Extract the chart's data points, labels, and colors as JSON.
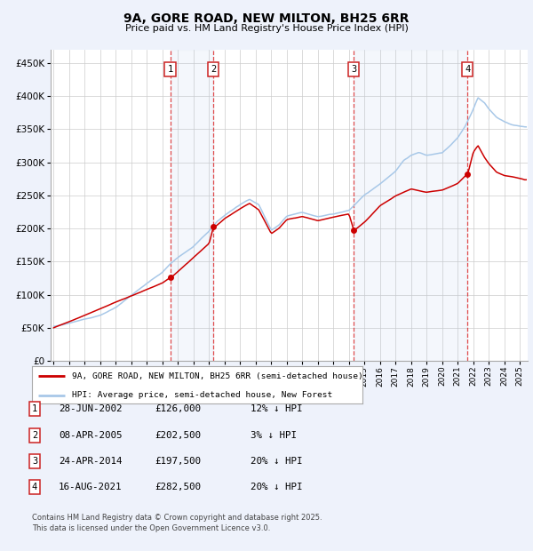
{
  "title": "9A, GORE ROAD, NEW MILTON, BH25 6RR",
  "subtitle": "Price paid vs. HM Land Registry's House Price Index (HPI)",
  "bg_color": "#eef2fb",
  "plot_bg_color": "#ffffff",
  "grid_color": "#cccccc",
  "hpi_color": "#a8c8e8",
  "price_color": "#cc0000",
  "purchases": [
    {
      "date_num": 2002.49,
      "price": 126000,
      "label": "1"
    },
    {
      "date_num": 2005.27,
      "price": 202500,
      "label": "2"
    },
    {
      "date_num": 2014.31,
      "price": 197500,
      "label": "3"
    },
    {
      "date_num": 2021.62,
      "price": 282500,
      "label": "4"
    }
  ],
  "legend_price_label": "9A, GORE ROAD, NEW MILTON, BH25 6RR (semi-detached house)",
  "legend_hpi_label": "HPI: Average price, semi-detached house, New Forest",
  "table_rows": [
    {
      "num": "1",
      "date": "28-JUN-2002",
      "price": "£126,000",
      "note": "12% ↓ HPI"
    },
    {
      "num": "2",
      "date": "08-APR-2005",
      "price": "£202,500",
      "note": "3% ↓ HPI"
    },
    {
      "num": "3",
      "date": "24-APR-2014",
      "price": "£197,500",
      "note": "20% ↓ HPI"
    },
    {
      "num": "4",
      "date": "16-AUG-2021",
      "price": "£282,500",
      "note": "20% ↓ HPI"
    }
  ],
  "footnote": "Contains HM Land Registry data © Crown copyright and database right 2025.\nThis data is licensed under the Open Government Licence v3.0.",
  "ylim": [
    0,
    470000
  ],
  "xlim": [
    1994.8,
    2025.5
  ],
  "yticks": [
    0,
    50000,
    100000,
    150000,
    200000,
    250000,
    300000,
    350000,
    400000,
    450000
  ],
  "hpi_anchors_t": [
    1995.0,
    1996.0,
    1997.0,
    1998.0,
    1999.0,
    2000.0,
    2001.0,
    2002.0,
    2002.5,
    2003.0,
    2004.0,
    2005.0,
    2005.5,
    2006.0,
    2007.0,
    2007.6,
    2008.2,
    2009.0,
    2009.5,
    2010.0,
    2011.0,
    2012.0,
    2013.0,
    2014.0,
    2015.0,
    2016.0,
    2017.0,
    2017.5,
    2018.0,
    2018.5,
    2019.0,
    2019.5,
    2020.0,
    2020.5,
    2021.0,
    2021.5,
    2022.0,
    2022.3,
    2022.7,
    2023.0,
    2023.5,
    2024.0,
    2024.5,
    2025.0,
    2025.3
  ],
  "hpi_anchors_v": [
    52000,
    57000,
    63000,
    70000,
    82000,
    100000,
    118000,
    135000,
    148000,
    158000,
    175000,
    198000,
    212000,
    222000,
    238000,
    246000,
    238000,
    200000,
    208000,
    222000,
    228000,
    222000,
    226000,
    232000,
    255000,
    272000,
    292000,
    308000,
    316000,
    320000,
    316000,
    318000,
    320000,
    330000,
    342000,
    360000,
    385000,
    402000,
    395000,
    385000,
    372000,
    365000,
    360000,
    358000,
    357000
  ],
  "price_anchors_t": [
    1995.0,
    2002.0,
    2002.49,
    2002.55,
    2005.0,
    2005.27,
    2005.35,
    2006.0,
    2007.0,
    2007.6,
    2008.2,
    2009.0,
    2009.5,
    2010.0,
    2011.0,
    2012.0,
    2013.0,
    2014.0,
    2014.31,
    2014.35,
    2015.0,
    2016.0,
    2017.0,
    2018.0,
    2019.0,
    2020.0,
    2021.0,
    2021.62,
    2021.65,
    2022.0,
    2022.3,
    2022.7,
    2023.0,
    2023.5,
    2024.0,
    2024.5,
    2025.0,
    2025.3
  ],
  "price_anchors_v": [
    50000,
    118000,
    126000,
    126000,
    178000,
    202500,
    202500,
    215000,
    230000,
    238000,
    228000,
    192000,
    200000,
    213000,
    218000,
    212000,
    217000,
    222000,
    197500,
    197500,
    210000,
    235000,
    250000,
    260000,
    255000,
    258000,
    268000,
    282500,
    282500,
    315000,
    325000,
    308000,
    298000,
    285000,
    280000,
    278000,
    275000,
    273000
  ]
}
